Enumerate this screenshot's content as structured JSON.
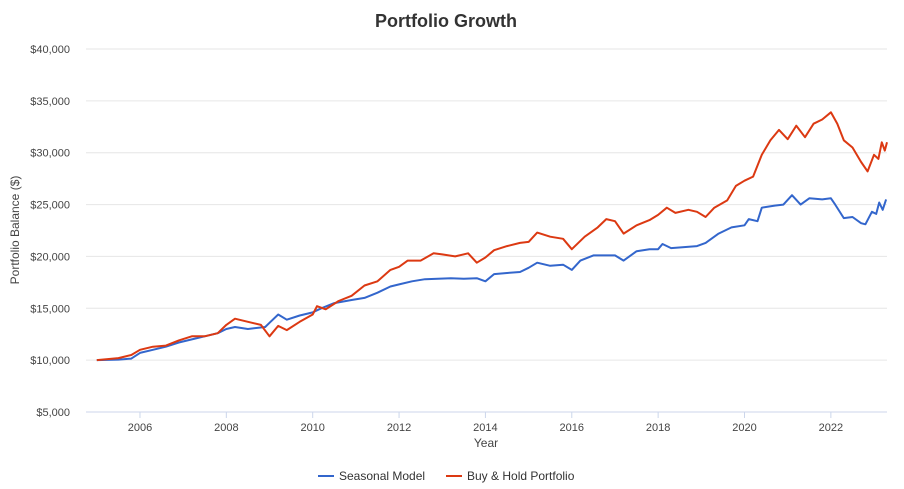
{
  "chart_data": {
    "type": "line",
    "title": "Portfolio Growth",
    "xlabel": "Year",
    "ylabel": "Portfolio Balance ($)",
    "xlim": [
      2004.75,
      2023.3
    ],
    "ylim": [
      5000,
      40000
    ],
    "x_ticks": [
      2006,
      2008,
      2010,
      2012,
      2014,
      2016,
      2018,
      2020,
      2022
    ],
    "y_ticks": [
      5000,
      10000,
      15000,
      20000,
      25000,
      30000,
      35000,
      40000
    ],
    "y_tick_labels": [
      "$5,000",
      "$10,000",
      "$15,000",
      "$20,000",
      "$25,000",
      "$30,000",
      "$35,000",
      "$40,000"
    ],
    "x_tick_labels": [
      "2006",
      "2008",
      "2010",
      "2012",
      "2014",
      "2016",
      "2018",
      "2020",
      "2022"
    ],
    "grid": true,
    "legend_position": "bottom-center",
    "series": [
      {
        "name": "Seasonal Model",
        "color": "#3366cc",
        "points": [
          [
            2005.0,
            10000
          ],
          [
            2005.5,
            10050
          ],
          [
            2005.8,
            10150
          ],
          [
            2006.0,
            10700
          ],
          [
            2006.3,
            11000
          ],
          [
            2006.6,
            11300
          ],
          [
            2006.9,
            11700
          ],
          [
            2007.2,
            12000
          ],
          [
            2007.5,
            12300
          ],
          [
            2007.8,
            12600
          ],
          [
            2008.0,
            13000
          ],
          [
            2008.2,
            13200
          ],
          [
            2008.5,
            13000
          ],
          [
            2008.9,
            13200
          ],
          [
            2009.0,
            13600
          ],
          [
            2009.2,
            14400
          ],
          [
            2009.4,
            13900
          ],
          [
            2009.7,
            14300
          ],
          [
            2010.0,
            14600
          ],
          [
            2010.2,
            15000
          ],
          [
            2010.5,
            15500
          ],
          [
            2010.9,
            15800
          ],
          [
            2011.2,
            16000
          ],
          [
            2011.5,
            16500
          ],
          [
            2011.8,
            17100
          ],
          [
            2012.0,
            17300
          ],
          [
            2012.3,
            17600
          ],
          [
            2012.6,
            17800
          ],
          [
            2012.9,
            17850
          ],
          [
            2013.2,
            17900
          ],
          [
            2013.5,
            17850
          ],
          [
            2013.8,
            17900
          ],
          [
            2014.0,
            17600
          ],
          [
            2014.2,
            18300
          ],
          [
            2014.5,
            18400
          ],
          [
            2014.8,
            18500
          ],
          [
            2015.0,
            18900
          ],
          [
            2015.2,
            19400
          ],
          [
            2015.5,
            19100
          ],
          [
            2015.8,
            19200
          ],
          [
            2016.0,
            18700
          ],
          [
            2016.2,
            19600
          ],
          [
            2016.5,
            20100
          ],
          [
            2016.8,
            20100
          ],
          [
            2017.0,
            20100
          ],
          [
            2017.2,
            19600
          ],
          [
            2017.5,
            20500
          ],
          [
            2017.8,
            20700
          ],
          [
            2018.0,
            20700
          ],
          [
            2018.1,
            21200
          ],
          [
            2018.3,
            20800
          ],
          [
            2018.6,
            20900
          ],
          [
            2018.9,
            21000
          ],
          [
            2019.1,
            21300
          ],
          [
            2019.4,
            22200
          ],
          [
            2019.7,
            22800
          ],
          [
            2020.0,
            23000
          ],
          [
            2020.1,
            23600
          ],
          [
            2020.3,
            23400
          ],
          [
            2020.4,
            24700
          ],
          [
            2020.7,
            24900
          ],
          [
            2020.9,
            25000
          ],
          [
            2021.1,
            25900
          ],
          [
            2021.3,
            25000
          ],
          [
            2021.5,
            25600
          ],
          [
            2021.8,
            25500
          ],
          [
            2022.0,
            25600
          ],
          [
            2022.1,
            25000
          ],
          [
            2022.3,
            23700
          ],
          [
            2022.5,
            23800
          ],
          [
            2022.7,
            23200
          ],
          [
            2022.8,
            23100
          ],
          [
            2022.95,
            24300
          ],
          [
            2023.05,
            24100
          ],
          [
            2023.12,
            25200
          ],
          [
            2023.2,
            24500
          ],
          [
            2023.28,
            25500
          ]
        ]
      },
      {
        "name": "Buy & Hold Portfolio",
        "color": "#dc3912",
        "points": [
          [
            2005.0,
            10000
          ],
          [
            2005.5,
            10200
          ],
          [
            2005.8,
            10500
          ],
          [
            2006.0,
            11000
          ],
          [
            2006.3,
            11300
          ],
          [
            2006.6,
            11400
          ],
          [
            2006.9,
            11900
          ],
          [
            2007.2,
            12300
          ],
          [
            2007.5,
            12300
          ],
          [
            2007.8,
            12600
          ],
          [
            2008.0,
            13400
          ],
          [
            2008.2,
            14000
          ],
          [
            2008.5,
            13700
          ],
          [
            2008.8,
            13400
          ],
          [
            2009.0,
            12300
          ],
          [
            2009.2,
            13300
          ],
          [
            2009.4,
            12900
          ],
          [
            2009.7,
            13700
          ],
          [
            2010.0,
            14400
          ],
          [
            2010.1,
            15200
          ],
          [
            2010.3,
            14900
          ],
          [
            2010.6,
            15700
          ],
          [
            2010.9,
            16200
          ],
          [
            2011.2,
            17200
          ],
          [
            2011.5,
            17600
          ],
          [
            2011.8,
            18700
          ],
          [
            2012.0,
            19000
          ],
          [
            2012.2,
            19600
          ],
          [
            2012.5,
            19600
          ],
          [
            2012.8,
            20300
          ],
          [
            2013.0,
            20200
          ],
          [
            2013.3,
            20000
          ],
          [
            2013.6,
            20300
          ],
          [
            2013.8,
            19400
          ],
          [
            2014.0,
            19900
          ],
          [
            2014.2,
            20600
          ],
          [
            2014.5,
            21000
          ],
          [
            2014.8,
            21300
          ],
          [
            2015.0,
            21400
          ],
          [
            2015.2,
            22300
          ],
          [
            2015.5,
            21900
          ],
          [
            2015.8,
            21700
          ],
          [
            2016.0,
            20700
          ],
          [
            2016.3,
            21900
          ],
          [
            2016.6,
            22800
          ],
          [
            2016.8,
            23600
          ],
          [
            2017.0,
            23400
          ],
          [
            2017.2,
            22200
          ],
          [
            2017.5,
            23000
          ],
          [
            2017.8,
            23500
          ],
          [
            2018.0,
            24000
          ],
          [
            2018.2,
            24700
          ],
          [
            2018.4,
            24200
          ],
          [
            2018.7,
            24500
          ],
          [
            2018.9,
            24300
          ],
          [
            2019.1,
            23800
          ],
          [
            2019.3,
            24700
          ],
          [
            2019.6,
            25400
          ],
          [
            2019.8,
            26800
          ],
          [
            2020.0,
            27300
          ],
          [
            2020.2,
            27700
          ],
          [
            2020.4,
            29800
          ],
          [
            2020.6,
            31200
          ],
          [
            2020.8,
            32200
          ],
          [
            2021.0,
            31300
          ],
          [
            2021.2,
            32600
          ],
          [
            2021.4,
            31500
          ],
          [
            2021.6,
            32800
          ],
          [
            2021.8,
            33200
          ],
          [
            2022.0,
            33900
          ],
          [
            2022.15,
            32800
          ],
          [
            2022.3,
            31200
          ],
          [
            2022.5,
            30500
          ],
          [
            2022.7,
            29100
          ],
          [
            2022.85,
            28200
          ],
          [
            2023.0,
            29800
          ],
          [
            2023.1,
            29400
          ],
          [
            2023.18,
            31000
          ],
          [
            2023.25,
            30200
          ],
          [
            2023.3,
            31000
          ]
        ]
      }
    ]
  }
}
